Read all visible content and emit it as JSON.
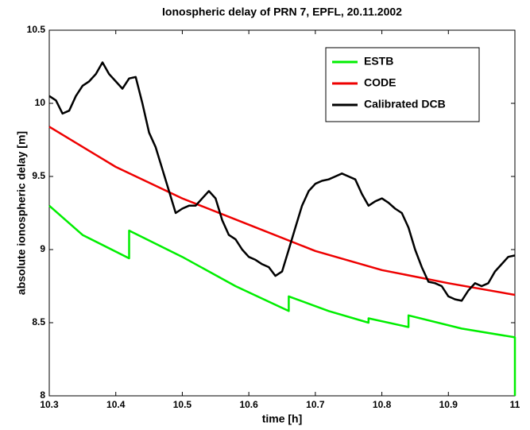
{
  "chart_data": {
    "type": "line",
    "title": "Ionospheric delay of PRN 7, EPFL, 20.11.2002",
    "x_label": "time [h]",
    "y_label": "absolute ionospheric delay [m]",
    "xlim": [
      10.3,
      11
    ],
    "ylim": [
      8,
      10.5
    ],
    "xticks": [
      10.3,
      10.4,
      10.5,
      10.6,
      10.7,
      10.8,
      10.9,
      11
    ],
    "yticks": [
      8,
      8.5,
      9,
      9.5,
      10,
      10.5
    ],
    "legend": "upper right",
    "series": [
      {
        "name": "ESTB",
        "color": "#00ee00",
        "x": [
          10.3,
          10.35,
          10.42,
          10.42,
          10.5,
          10.58,
          10.66,
          10.66,
          10.72,
          10.78,
          10.78,
          10.84,
          10.84,
          10.92,
          11,
          11
        ],
        "values": [
          9.3,
          9.1,
          8.94,
          9.13,
          8.95,
          8.75,
          8.58,
          8.68,
          8.58,
          8.5,
          8.53,
          8.47,
          8.55,
          8.46,
          8.4,
          8.0
        ]
      },
      {
        "name": "CODE",
        "color": "#ee0000",
        "x": [
          10.3,
          10.4,
          10.5,
          10.6,
          10.7,
          10.8,
          10.9,
          11
        ],
        "values": [
          9.84,
          9.565,
          9.35,
          9.17,
          8.99,
          8.86,
          8.77,
          8.69
        ]
      },
      {
        "name": "Calibrated DCB",
        "color": "#000000",
        "x": [
          10.3,
          10.31,
          10.32,
          10.33,
          10.34,
          10.35,
          10.36,
          10.37,
          10.38,
          10.39,
          10.4,
          10.41,
          10.42,
          10.43,
          10.44,
          10.45,
          10.46,
          10.47,
          10.48,
          10.49,
          10.5,
          10.51,
          10.52,
          10.53,
          10.54,
          10.55,
          10.56,
          10.57,
          10.58,
          10.59,
          10.6,
          10.61,
          10.62,
          10.63,
          10.64,
          10.65,
          10.66,
          10.67,
          10.68,
          10.69,
          10.7,
          10.71,
          10.72,
          10.73,
          10.74,
          10.75,
          10.76,
          10.77,
          10.78,
          10.79,
          10.8,
          10.81,
          10.82,
          10.83,
          10.84,
          10.85,
          10.86,
          10.87,
          10.88,
          10.89,
          10.9,
          10.91,
          10.92,
          10.93,
          10.94,
          10.95,
          10.96,
          10.97,
          10.98,
          10.99,
          11
        ],
        "values": [
          10.05,
          10.02,
          9.93,
          9.95,
          10.05,
          10.12,
          10.15,
          10.2,
          10.28,
          10.2,
          10.15,
          10.1,
          10.17,
          10.18,
          10.0,
          9.8,
          9.7,
          9.55,
          9.4,
          9.25,
          9.28,
          9.3,
          9.3,
          9.35,
          9.4,
          9.35,
          9.2,
          9.1,
          9.07,
          9.0,
          8.95,
          8.93,
          8.9,
          8.88,
          8.82,
          8.85,
          9.0,
          9.15,
          9.3,
          9.4,
          9.45,
          9.47,
          9.48,
          9.5,
          9.52,
          9.5,
          9.48,
          9.38,
          9.3,
          9.33,
          9.35,
          9.32,
          9.28,
          9.25,
          9.15,
          9.0,
          8.88,
          8.78,
          8.77,
          8.75,
          8.68,
          8.66,
          8.65,
          8.72,
          8.77,
          8.75,
          8.77,
          8.85,
          8.9,
          8.95,
          8.96
        ]
      }
    ]
  }
}
